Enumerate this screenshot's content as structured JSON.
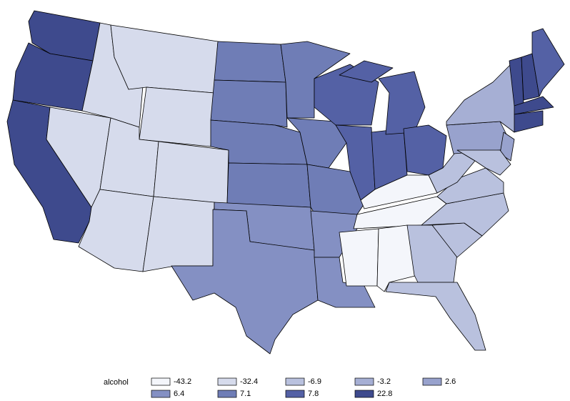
{
  "legend": {
    "title": "alcohol",
    "items": [
      {
        "value": -43.2,
        "color": "#f4f6fb"
      },
      {
        "value": -32.4,
        "color": "#d6dbec"
      },
      {
        "value": -6.9,
        "color": "#b9c1de"
      },
      {
        "value": -3.2,
        "color": "#a6afd4"
      },
      {
        "value": 2.6,
        "color": "#98a2cd"
      },
      {
        "value": 6.4,
        "color": "#8490c3"
      },
      {
        "value": 7.1,
        "color": "#6f7db6"
      },
      {
        "value": 7.8,
        "color": "#5461a5"
      },
      {
        "value": 22.8,
        "color": "#3e4a8d"
      }
    ]
  }
}
